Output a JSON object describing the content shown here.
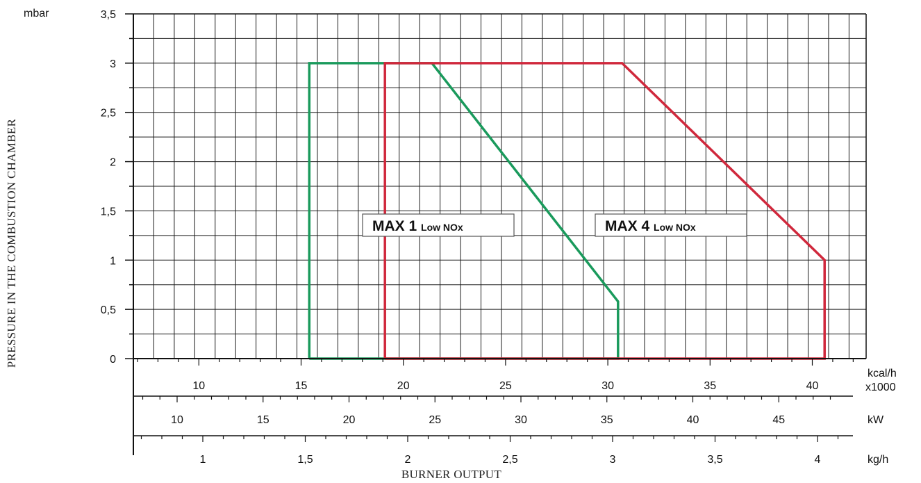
{
  "chart_data": {
    "type": "area",
    "title": "",
    "ylabel": "PRESSURE IN THE COMBUSTION CHAMBER",
    "yunit": "mbar",
    "xlabel": "BURNER OUTPUT",
    "ylim": [
      0,
      3.5
    ],
    "grid": true,
    "y_ticks": [
      "0",
      "0,5",
      "1",
      "1,5",
      "2",
      "2,5",
      "3",
      "3,5"
    ],
    "x_scales": [
      {
        "unit": "kcal/h x1000",
        "unit_line1": "kcal/h",
        "unit_line2": "x1000",
        "ticks": [
          10,
          15,
          20,
          25,
          30,
          35,
          40
        ],
        "tick_labels": [
          "10",
          "15",
          "20",
          "25",
          "30",
          "35",
          "40"
        ]
      },
      {
        "unit": "kW",
        "ticks": [
          10,
          15,
          20,
          25,
          30,
          35,
          40,
          45
        ],
        "tick_labels": [
          "10",
          "15",
          "20",
          "25",
          "30",
          "35",
          "40",
          "45"
        ]
      },
      {
        "unit": "kg/h",
        "ticks": [
          1,
          1.5,
          2,
          2.5,
          3,
          3.5,
          4
        ],
        "tick_labels": [
          "1",
          "1,5",
          "2",
          "2,5",
          "3",
          "3,5",
          "4"
        ]
      }
    ],
    "series": [
      {
        "name": "MAX 1 Low NOx",
        "label_main": "MAX 1",
        "label_sub": "Low NOx",
        "color": "#1a9a5c",
        "x_unit": "kcal/h x1000",
        "points": [
          [
            15.4,
            0
          ],
          [
            15.4,
            3.0
          ],
          [
            21.4,
            3.0
          ],
          [
            30.5,
            0.58
          ],
          [
            30.5,
            0
          ],
          [
            15.4,
            0
          ]
        ]
      },
      {
        "name": "MAX 4 Low NOx",
        "label_main": "MAX 4",
        "label_sub": "Low NOx",
        "color": "#d0283c",
        "x_unit": "kcal/h x1000",
        "points": [
          [
            19.1,
            0
          ],
          [
            19.1,
            3.0
          ],
          [
            30.7,
            3.0
          ],
          [
            40.6,
            1.0
          ],
          [
            40.6,
            0
          ],
          [
            19.1,
            0
          ]
        ]
      }
    ]
  }
}
